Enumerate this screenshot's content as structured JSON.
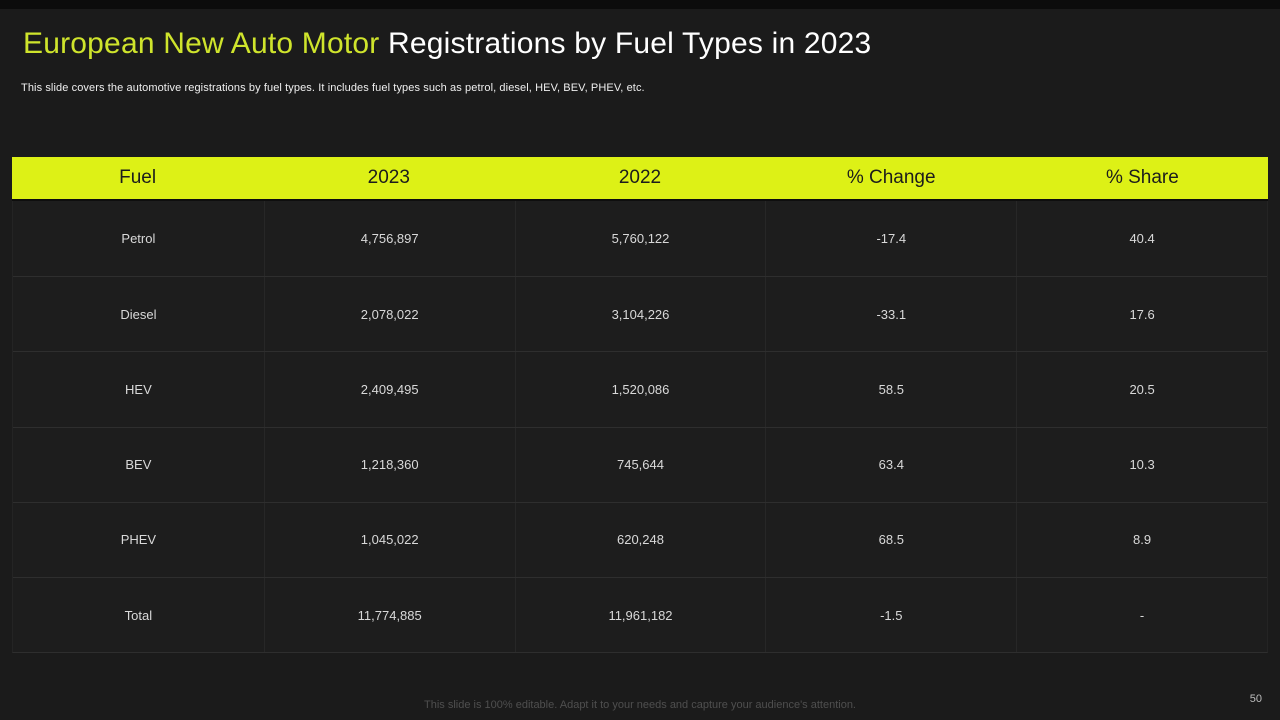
{
  "slide": {
    "title_highlight": "European New Auto Motor",
    "title_rest": " Registrations by Fuel Types in 2023",
    "subtitle": "This slide covers the automotive registrations by fuel types. It includes fuel types such as petrol, diesel, HEV, BEV, PHEV, etc.",
    "footer": "This slide is 100% editable. Adapt it to your needs and capture your audience's attention.",
    "page_number": "50"
  },
  "colors": {
    "accent": "#ddf116",
    "title_accent": "#cfe42c",
    "background": "#1b1b1b",
    "header_text": "#1c1c1c"
  },
  "table": {
    "headers": [
      "Fuel",
      "2023",
      "2022",
      "% Change",
      "% Share"
    ],
    "rows": [
      [
        "Petrol",
        "4,756,897",
        "5,760,122",
        "-17.4",
        "40.4"
      ],
      [
        "Diesel",
        "2,078,022",
        "3,104,226",
        "-33.1",
        "17.6"
      ],
      [
        "HEV",
        "2,409,495",
        "1,520,086",
        "58.5",
        "20.5"
      ],
      [
        "BEV",
        "1,218,360",
        "745,644",
        "63.4",
        "10.3"
      ],
      [
        "PHEV",
        "1,045,022",
        "620,248",
        "68.5",
        "8.9"
      ],
      [
        "Total",
        "11,774,885",
        "11,961,182",
        "-1.5",
        "-"
      ]
    ]
  }
}
